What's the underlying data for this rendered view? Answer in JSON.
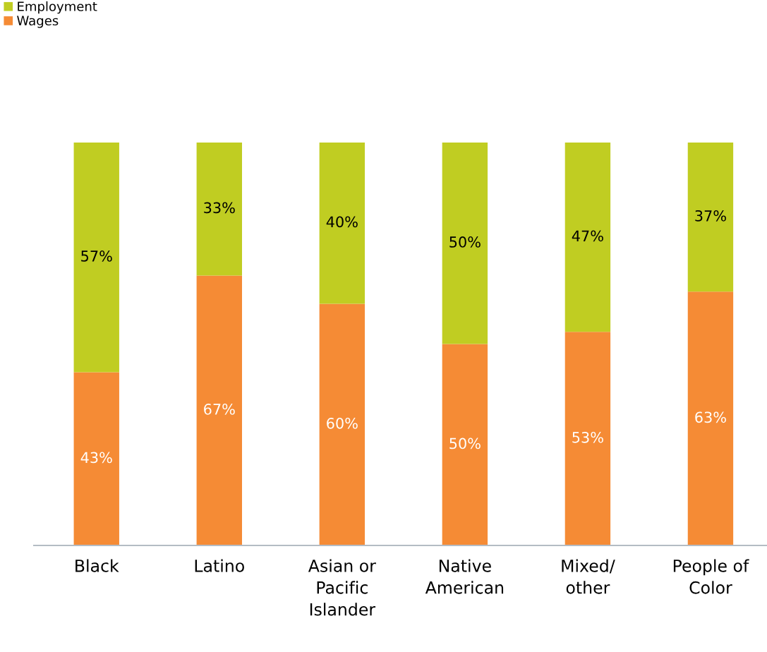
{
  "chart_data": {
    "type": "bar",
    "stacked": true,
    "categories": [
      "Black",
      "Latino",
      "Asian or\nPacific\nIslander",
      "Native\nAmerican",
      "Mixed/\nother",
      "People of\nColor"
    ],
    "series": [
      {
        "name": "Wages",
        "color": "#f58b35",
        "values": [
          43,
          67,
          60,
          50,
          53,
          63
        ],
        "value_labels": [
          "43%",
          "67%",
          "60%",
          "50%",
          "53%",
          "63%"
        ]
      },
      {
        "name": "Employment",
        "color": "#c0cd22",
        "values": [
          57,
          33,
          40,
          50,
          47,
          37
        ],
        "value_labels": [
          "57%",
          "33%",
          "40%",
          "50%",
          "47%",
          "37%"
        ]
      }
    ],
    "tick_labels": "x",
    "legend": "top left"
  }
}
